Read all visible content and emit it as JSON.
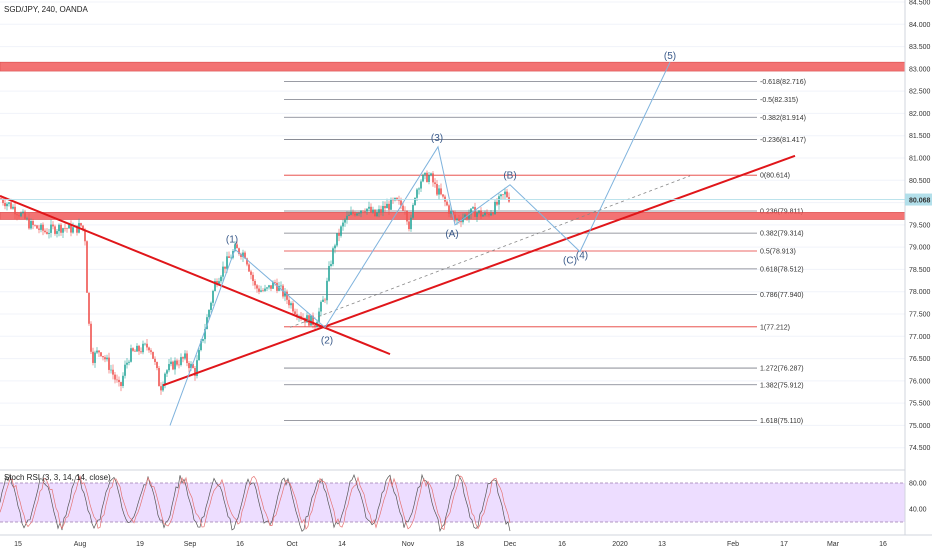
{
  "header": {
    "symbol_title": "SGD/JPY, 240, OANDA"
  },
  "colors": {
    "up": "#26a69a",
    "down": "#ef5350",
    "fib": "#787b86",
    "fib_red": "#e53935",
    "trend": "#e0161a",
    "zone": "#f25b5b",
    "wave": "#7fb3dd",
    "rsi_bg": "#e9d5ff",
    "price_tag": "#b2dfea"
  },
  "chart_data": [
    {
      "type": "line",
      "name": "price",
      "ylim": [
        74.0,
        84.5
      ],
      "y_ticks": [
        "84.500",
        "84.000",
        "83.500",
        "83.000",
        "82.500",
        "82.000",
        "81.500",
        "81.000",
        "80.500",
        "80.000",
        "79.500",
        "79.000",
        "78.500",
        "78.000",
        "77.500",
        "77.000",
        "76.500",
        "76.000",
        "75.500",
        "75.000",
        "74.500"
      ],
      "x_ticks": [
        "15",
        "Aug",
        "19",
        "Sep",
        "16",
        "Oct",
        "14",
        "Nov",
        "18",
        "Dec",
        "16",
        "2020",
        "13",
        "Feb",
        "17",
        "Mar",
        "16"
      ],
      "last_price": "80.068",
      "series": [
        {
          "x": [
            0,
            10,
            20,
            30,
            45,
            60,
            75,
            82,
            85,
            88,
            92,
            100,
            110,
            120,
            125,
            130,
            140,
            150,
            158,
            160,
            165,
            175,
            185,
            195,
            205,
            215,
            225,
            235,
            245,
            255,
            265,
            275,
            285,
            295,
            305,
            315,
            320,
            325,
            330,
            335,
            345,
            355,
            365,
            375,
            385,
            395,
            405,
            410,
            415,
            420,
            425,
            430,
            435,
            445,
            455,
            465,
            475,
            485,
            495,
            505,
            510
          ],
          "y": [
            80.1,
            79.95,
            79.75,
            79.5,
            79.35,
            79.45,
            79.4,
            79.5,
            79.2,
            77.5,
            76.5,
            76.7,
            76.3,
            75.8,
            76.3,
            76.6,
            76.7,
            76.8,
            76.1,
            75.8,
            76.2,
            76.4,
            76.5,
            76.2,
            77.2,
            78.2,
            78.6,
            78.95,
            78.85,
            78.1,
            78.0,
            78.2,
            77.9,
            77.6,
            77.4,
            77.3,
            77.6,
            77.9,
            78.6,
            79.1,
            79.6,
            79.8,
            79.9,
            79.7,
            79.9,
            80.0,
            79.9,
            79.4,
            80.2,
            80.5,
            80.55,
            80.6,
            80.35,
            80.0,
            79.6,
            79.7,
            79.8,
            79.7,
            79.9,
            80.2,
            80.1
          ]
        }
      ]
    },
    {
      "type": "table",
      "name": "fibonacci",
      "levels": [
        {
          "label": "-0.618(82.716)",
          "value": 82.716,
          "highlight": false
        },
        {
          "label": "-0.5(82.315)",
          "value": 82.315,
          "highlight": false
        },
        {
          "label": "-0.382(81.914)",
          "value": 81.914,
          "highlight": false
        },
        {
          "label": "-0.236(81.417)",
          "value": 81.417,
          "highlight": false
        },
        {
          "label": "0(80.614)",
          "value": 80.614,
          "highlight": true
        },
        {
          "label": "0.236(79.811)",
          "value": 79.811,
          "highlight": false
        },
        {
          "label": "0.382(79.314)",
          "value": 79.314,
          "highlight": false
        },
        {
          "label": "0.5(78.913)",
          "value": 78.913,
          "highlight": true
        },
        {
          "label": "0.618(78.512)",
          "value": 78.512,
          "highlight": false
        },
        {
          "label": "0.786(77.940)",
          "value": 77.94,
          "highlight": false
        },
        {
          "label": "1(77.212)",
          "value": 77.212,
          "highlight": true
        },
        {
          "label": "1.272(76.287)",
          "value": 76.287,
          "highlight": false
        },
        {
          "label": "1.382(75.912)",
          "value": 75.912,
          "highlight": false
        },
        {
          "label": "1.618(75.110)",
          "value": 75.11,
          "highlight": false
        }
      ]
    },
    {
      "type": "line",
      "name": "elliott_waves",
      "labels": [
        "(1)",
        "(2)",
        "(3)",
        "(A)",
        "(B)",
        "(C)",
        "(4)",
        "(5)"
      ],
      "series": [
        {
          "x": [
            170,
            235,
            325,
            438,
            455,
            510,
            580,
            670
          ],
          "y": [
            75.0,
            78.95,
            77.2,
            81.25,
            79.5,
            80.4,
            78.9,
            83.15
          ]
        }
      ]
    },
    {
      "type": "area",
      "name": "Stoch RSI (3, 3, 14, 14, close)",
      "title": "Stoch RSI (3, 3, 14, 14, close)",
      "ylim": [
        0,
        100
      ],
      "y_ticks": [
        "80.00",
        "40.00"
      ],
      "band": [
        20,
        80
      ]
    }
  ],
  "zones": [
    {
      "low": 82.95,
      "high": 83.15
    },
    {
      "low": 79.62,
      "high": 79.78
    }
  ],
  "trendlines": [
    {
      "x1": 0,
      "y1": 80.15,
      "x2": 390,
      "y2": 76.6
    },
    {
      "x1": 163,
      "y1": 75.9,
      "x2": 795,
      "y2": 81.05
    }
  ]
}
